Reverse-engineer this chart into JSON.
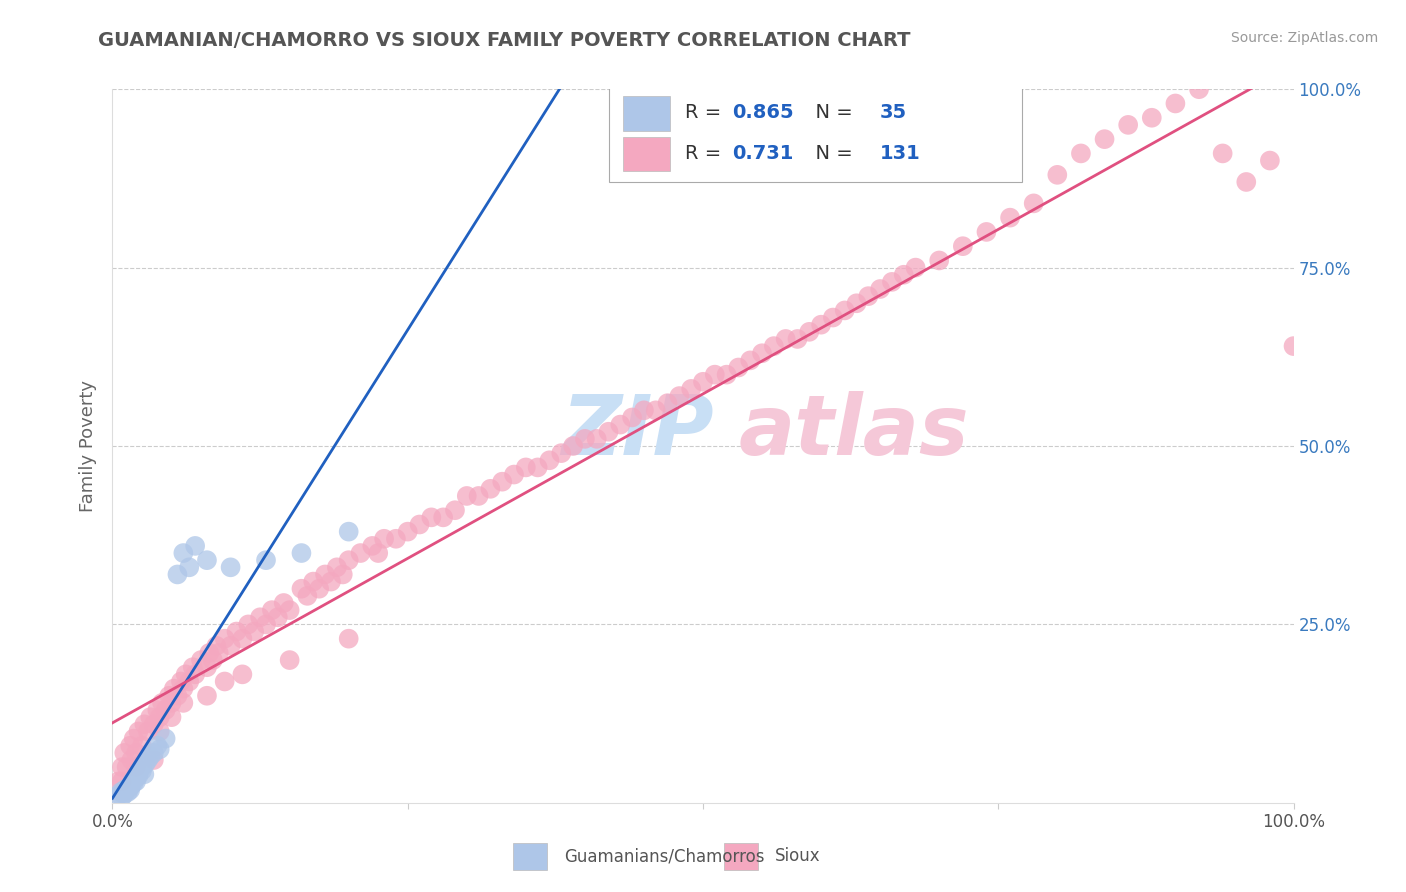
{
  "title": "GUAMANIAN/CHAMORRO VS SIOUX FAMILY POVERTY CORRELATION CHART",
  "source": "Source: ZipAtlas.com",
  "ylabel": "Family Poverty",
  "blue_R": 0.865,
  "blue_N": 35,
  "pink_R": 0.731,
  "pink_N": 131,
  "blue_color": "#aec6e8",
  "pink_color": "#f4a8c0",
  "blue_line_color": "#2060c0",
  "pink_line_color": "#e05080",
  "legend_label_blue": "Guamanians/Chamorros",
  "legend_label_pink": "Sioux",
  "background_color": "#ffffff",
  "grid_color": "#cccccc",
  "title_color": "#555555",
  "axis_tick_color": "#3a7abf",
  "watermark_zip_color": "#c8dff5",
  "watermark_atlas_color": "#f5c8d8",
  "blue_x": [
    0.005,
    0.007,
    0.008,
    0.01,
    0.01,
    0.012,
    0.013,
    0.015,
    0.015,
    0.016,
    0.017,
    0.018,
    0.02,
    0.02,
    0.022,
    0.022,
    0.025,
    0.025,
    0.027,
    0.028,
    0.03,
    0.032,
    0.035,
    0.038,
    0.04,
    0.045,
    0.055,
    0.06,
    0.065,
    0.07,
    0.08,
    0.1,
    0.13,
    0.16,
    0.2
  ],
  "blue_y": [
    0.01,
    0.015,
    0.008,
    0.012,
    0.018,
    0.02,
    0.015,
    0.022,
    0.018,
    0.025,
    0.03,
    0.028,
    0.035,
    0.03,
    0.038,
    0.042,
    0.045,
    0.05,
    0.04,
    0.055,
    0.06,
    0.065,
    0.07,
    0.08,
    0.075,
    0.09,
    0.32,
    0.35,
    0.33,
    0.36,
    0.34,
    0.33,
    0.34,
    0.35,
    0.38
  ],
  "pink_x": [
    0.005,
    0.008,
    0.01,
    0.012,
    0.015,
    0.016,
    0.018,
    0.02,
    0.022,
    0.025,
    0.027,
    0.03,
    0.032,
    0.035,
    0.038,
    0.04,
    0.042,
    0.045,
    0.048,
    0.05,
    0.052,
    0.055,
    0.058,
    0.06,
    0.062,
    0.065,
    0.068,
    0.07,
    0.075,
    0.08,
    0.082,
    0.085,
    0.088,
    0.09,
    0.095,
    0.1,
    0.105,
    0.11,
    0.115,
    0.12,
    0.125,
    0.13,
    0.135,
    0.14,
    0.145,
    0.15,
    0.16,
    0.165,
    0.17,
    0.175,
    0.18,
    0.185,
    0.19,
    0.195,
    0.2,
    0.21,
    0.22,
    0.225,
    0.23,
    0.24,
    0.25,
    0.26,
    0.27,
    0.28,
    0.29,
    0.3,
    0.31,
    0.32,
    0.33,
    0.34,
    0.35,
    0.36,
    0.37,
    0.38,
    0.39,
    0.4,
    0.41,
    0.42,
    0.43,
    0.44,
    0.45,
    0.46,
    0.47,
    0.48,
    0.49,
    0.5,
    0.51,
    0.52,
    0.53,
    0.54,
    0.55,
    0.56,
    0.57,
    0.58,
    0.59,
    0.6,
    0.61,
    0.62,
    0.63,
    0.64,
    0.65,
    0.66,
    0.67,
    0.68,
    0.7,
    0.72,
    0.74,
    0.76,
    0.78,
    0.8,
    0.82,
    0.84,
    0.86,
    0.88,
    0.9,
    0.92,
    0.94,
    0.96,
    0.98,
    1.0,
    0.008,
    0.02,
    0.035,
    0.04,
    0.05,
    0.06,
    0.08,
    0.095,
    0.11,
    0.15,
    0.2
  ],
  "pink_y": [
    0.03,
    0.05,
    0.07,
    0.05,
    0.08,
    0.06,
    0.09,
    0.07,
    0.1,
    0.08,
    0.11,
    0.1,
    0.12,
    0.11,
    0.13,
    0.12,
    0.14,
    0.13,
    0.15,
    0.14,
    0.16,
    0.15,
    0.17,
    0.16,
    0.18,
    0.17,
    0.19,
    0.18,
    0.2,
    0.19,
    0.21,
    0.2,
    0.22,
    0.21,
    0.23,
    0.22,
    0.24,
    0.23,
    0.25,
    0.24,
    0.26,
    0.25,
    0.27,
    0.26,
    0.28,
    0.27,
    0.3,
    0.29,
    0.31,
    0.3,
    0.32,
    0.31,
    0.33,
    0.32,
    0.34,
    0.35,
    0.36,
    0.35,
    0.37,
    0.37,
    0.38,
    0.39,
    0.4,
    0.4,
    0.41,
    0.43,
    0.43,
    0.44,
    0.45,
    0.46,
    0.47,
    0.47,
    0.48,
    0.49,
    0.5,
    0.51,
    0.51,
    0.52,
    0.53,
    0.54,
    0.55,
    0.55,
    0.56,
    0.57,
    0.58,
    0.59,
    0.6,
    0.6,
    0.61,
    0.62,
    0.63,
    0.64,
    0.65,
    0.65,
    0.66,
    0.67,
    0.68,
    0.69,
    0.7,
    0.71,
    0.72,
    0.73,
    0.74,
    0.75,
    0.76,
    0.78,
    0.8,
    0.82,
    0.84,
    0.88,
    0.91,
    0.93,
    0.95,
    0.96,
    0.98,
    1.0,
    0.91,
    0.87,
    0.9,
    0.64,
    0.03,
    0.05,
    0.06,
    0.1,
    0.12,
    0.14,
    0.15,
    0.17,
    0.18,
    0.2,
    0.23
  ]
}
